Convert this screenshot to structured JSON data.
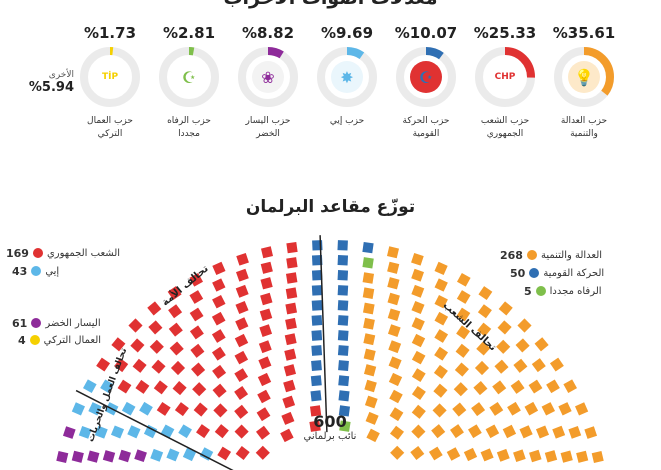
{
  "header": {
    "title": "معدلات أصوات الأحزاب"
  },
  "parties": [
    {
      "pct": "%35.61",
      "name1": "حزب العدالة",
      "name2": "والتنمية",
      "color": "#f39c2b",
      "share": 35.61,
      "logo_text": "💡",
      "logo_bg": "#fde9c9",
      "icon": "akp-bulb-icon"
    },
    {
      "pct": "%25.33",
      "name1": "حزب الشعب",
      "name2": "الجمهوري",
      "color": "#e03232",
      "share": 25.33,
      "logo_text": "CHP",
      "logo_bg": "#ffffff",
      "icon": "chp-logo-icon"
    },
    {
      "pct": "%10.07",
      "name1": "حزب الحركة",
      "name2": "القومية",
      "color": "#2f6fb3",
      "share": 10.07,
      "logo_text": "☪",
      "logo_bg": "#e03232",
      "icon": "mhp-logo-icon"
    },
    {
      "pct": "%9.69",
      "name1": "حزب إيي",
      "name2": "",
      "color": "#5db7e8",
      "share": 9.69,
      "logo_text": "✸",
      "logo_bg": "#eaf6fc",
      "icon": "iyi-logo-icon"
    },
    {
      "pct": "%8.82",
      "name1": "حزب اليسار",
      "name2": "الخضر",
      "color": "#8e2b9a",
      "share": 8.82,
      "logo_text": "❀",
      "logo_bg": "#f3f3f3",
      "icon": "ysp-tree-icon"
    },
    {
      "pct": "%2.81",
      "name1": "حزب الرفاه",
      "name2": "مجددا",
      "color": "#7fbf4b",
      "share": 2.81,
      "logo_text": "☪",
      "logo_bg": "#ffffff",
      "icon": "yrp-logo-icon"
    },
    {
      "pct": "%1.73",
      "name1": "حزب العمال",
      "name2": "التركي",
      "color": "#f5d000",
      "share": 1.73,
      "logo_text": "TİP",
      "logo_bg": "#ffffff",
      "icon": "tip-logo-icon"
    }
  ],
  "others": {
    "label": "الأخرى",
    "value": "%5.94"
  },
  "seats": {
    "title": "توزّع مقاعد البرلمان",
    "total": "600",
    "total_label": "نائب برلماني",
    "legend_right": [
      {
        "name": "العدالة والتنمية",
        "num": "268",
        "color": "#f39c2b"
      },
      {
        "name": "الحركة القومية",
        "num": "50",
        "color": "#2f6fb3"
      },
      {
        "name": "الرفاه مجددا",
        "num": "5",
        "color": "#7fbf4b"
      }
    ],
    "legend_left_top": [
      {
        "name": "الشعب الجمهوري",
        "num": "169",
        "color": "#e03232"
      },
      {
        "name": "إيي",
        "num": "43",
        "color": "#5db7e8"
      }
    ],
    "legend_left_bottom": [
      {
        "name": "اليسار الخضر",
        "num": "61",
        "color": "#8e2b9a"
      },
      {
        "name": "العمال التركي",
        "num": "4",
        "color": "#f5d000"
      }
    ],
    "alliances": {
      "people": "تحالف الشعب",
      "nation": "تحالف الأمة",
      "labour": "تحالف العمل والحريات"
    }
  }
}
